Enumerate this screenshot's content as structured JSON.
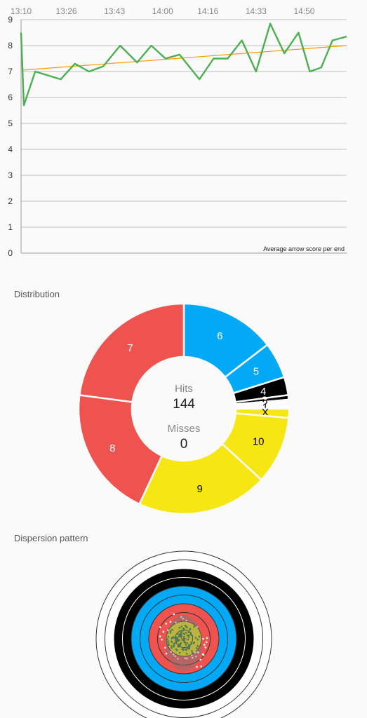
{
  "chart_data": [
    {
      "type": "line",
      "x": [
        "13:10",
        "13:11",
        "13:15",
        "13:24",
        "13:29",
        "13:34",
        "13:39",
        "13:45",
        "13:51",
        "13:56",
        "14:01",
        "14:06",
        "14:13",
        "14:18",
        "14:23",
        "14:28",
        "14:33",
        "14:38",
        "14:43",
        "14:48",
        "14:52",
        "14:56",
        "15:00",
        "15:05"
      ],
      "x_ticks": [
        "13:10",
        "13:26",
        "13:43",
        "14:00",
        "14:16",
        "14:33",
        "14:50"
      ],
      "series": [
        {
          "values": [
            8.5,
            5.7,
            7.0,
            6.7,
            7.3,
            7.0,
            7.2,
            8.0,
            7.35,
            8.0,
            7.5,
            7.65,
            6.7,
            7.5,
            7.5,
            8.2,
            7.0,
            8.85,
            7.7,
            8.5,
            7.0,
            7.15,
            8.2,
            8.35
          ],
          "color": "#4caf50"
        }
      ],
      "trend": {
        "from": 7.05,
        "to": 8.0,
        "color": "#ff9800"
      },
      "ylim": [
        0,
        9
      ],
      "y_ticks": [
        "0",
        "1",
        "2",
        "3",
        "4",
        "5",
        "6",
        "7",
        "8",
        "9"
      ],
      "annotation": "Average arrow score per end",
      "grid": true
    },
    {
      "type": "pie",
      "title": "Distribution",
      "slices": [
        {
          "label": "6",
          "value": 21,
          "color": "#03a9f4",
          "text_color": "#ffffff"
        },
        {
          "label": "5",
          "value": 8,
          "color": "#03a9f4",
          "text_color": "#ffffff"
        },
        {
          "label": "4",
          "value": 4,
          "color": "#000000",
          "text_color": "#ffffff"
        },
        {
          "label": "3",
          "value": 1,
          "color": "#000000",
          "text_color": "#ffffff"
        },
        {
          "label": "2",
          "value": 1,
          "color": "#ffffff",
          "text_color": "#000000"
        },
        {
          "label": "1",
          "value": 1,
          "color": "#ffffff",
          "text_color": "#000000"
        },
        {
          "label": "X",
          "value": 2,
          "color": "#f5e614",
          "text_color": "#000000"
        },
        {
          "label": "10",
          "value": 15,
          "color": "#f5e614",
          "text_color": "#000000"
        },
        {
          "label": "9",
          "value": 29,
          "color": "#f5e614",
          "text_color": "#000000"
        },
        {
          "label": "8",
          "value": 29,
          "color": "#ef5350",
          "text_color": "#ffffff"
        },
        {
          "label": "7",
          "value": 33,
          "color": "#ef5350",
          "text_color": "#ffffff"
        }
      ],
      "hits_label": "Hits",
      "hits": "144",
      "misses_label": "Misses",
      "misses": "0"
    }
  ],
  "dispersion": {
    "title": "Dispersion pattern",
    "rings": [
      "#ffffff",
      "#ffffff",
      "#000000",
      "#000000",
      "#03a9f4",
      "#03a9f4",
      "#ef5350",
      "#ef5350",
      "#f5e614",
      "#f5e614"
    ],
    "ring_lines": [
      "#333333",
      "#333333",
      "#ffffff",
      "#ffffff",
      "#333333",
      "#333333",
      "#333333",
      "#333333",
      "#333333",
      "#333333"
    ]
  }
}
